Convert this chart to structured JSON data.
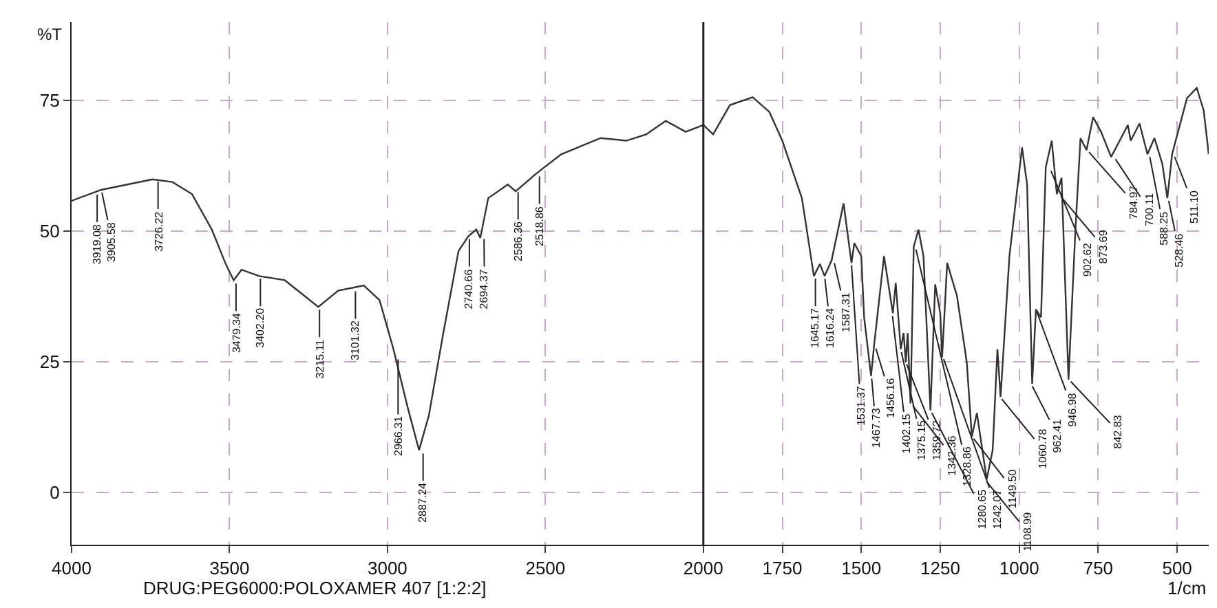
{
  "chart_data": {
    "type": "line",
    "xlabel": "1/cm",
    "ylabel": "%T",
    "grid": true,
    "marker": "none",
    "line_style": "solid",
    "xlim": [
      4000,
      400
    ],
    "xticks": [
      4000,
      3500,
      3000,
      2500,
      2000,
      1750,
      1500,
      1250,
      1000,
      750,
      500
    ],
    "ylim": [
      -10,
      90
    ],
    "yticks": [
      0,
      25,
      50,
      75
    ],
    "x": [
      4000,
      3906,
      3744,
      3681,
      3619,
      3556,
      3512,
      3487,
      3462,
      3406,
      3325,
      3219,
      3156,
      3075,
      3025,
      2981,
      2937,
      2900,
      2869,
      2825,
      2775,
      2744,
      2719,
      2706,
      2681,
      2619,
      2594,
      2531,
      2450,
      2325,
      2244,
      2181,
      2119,
      2056,
      2000,
      1969,
      1916,
      1844,
      1791,
      1750,
      1688,
      1650,
      1631,
      1616,
      1594,
      1556,
      1531,
      1522,
      1500,
      1491,
      1469,
      1459,
      1428,
      1400,
      1391,
      1375,
      1366,
      1359,
      1353,
      1344,
      1334,
      1319,
      1303,
      1281,
      1266,
      1250,
      1244,
      1228,
      1197,
      1166,
      1150,
      1134,
      1103,
      1084,
      1069,
      1059,
      1031,
      991,
      975,
      959,
      947,
      931,
      916,
      897,
      881,
      866,
      844,
      822,
      806,
      787,
      766,
      741,
      709,
      656,
      647,
      619,
      594,
      572,
      547,
      531,
      516,
      469,
      438,
      416,
      400
    ],
    "series": [
      {
        "color": "#333333",
        "values": [
          55.8,
          57.9,
          59.9,
          59.4,
          57.1,
          50.3,
          43.7,
          40.6,
          42.6,
          41.4,
          40.6,
          35.5,
          38.6,
          39.6,
          36.8,
          27.4,
          16.5,
          8.1,
          14.7,
          29.9,
          46.2,
          49.0,
          50.3,
          48.7,
          56.3,
          58.9,
          57.6,
          60.9,
          64.7,
          67.8,
          67.3,
          68.5,
          71.1,
          69.0,
          70.3,
          68.5,
          74.1,
          75.6,
          72.8,
          67.3,
          56.3,
          41.4,
          43.7,
          41.4,
          44.4,
          55.3,
          43.9,
          47.7,
          45.2,
          33.5,
          22.3,
          28.4,
          45.2,
          34.3,
          40.1,
          27.4,
          30.5,
          24.9,
          30.5,
          17.0,
          47.0,
          50.3,
          45.2,
          15.7,
          39.8,
          34.3,
          25.9,
          43.9,
          37.6,
          24.9,
          10.7,
          15.2,
          2.5,
          8.1,
          27.4,
          18.3,
          45.2,
          66.0,
          58.9,
          20.8,
          35.0,
          33.5,
          62.2,
          67.3,
          57.1,
          60.2,
          21.6,
          50.3,
          67.8,
          65.5,
          71.8,
          69.0,
          64.2,
          70.3,
          67.3,
          70.6,
          64.7,
          67.8,
          62.9,
          56.3,
          64.7,
          75.4,
          77.4,
          73.1,
          64.7
        ]
      }
    ],
    "ref_lines": [
      {
        "axis": "x",
        "value": 2000,
        "color": "#222222",
        "line_style": "solid"
      }
    ],
    "annotations": [
      {
        "text": "3919.08",
        "x": 3919.08,
        "y": 57.5
      },
      {
        "text": "3905.58",
        "x": 3905.58,
        "y": 57.9
      },
      {
        "text": "3726.22",
        "x": 3726.22,
        "y": 60
      },
      {
        "text": "3479.34",
        "x": 3479.34,
        "y": 40.5
      },
      {
        "text": "3402.20",
        "x": 3402.2,
        "y": 41.4
      },
      {
        "text": "3215.11",
        "x": 3215.11,
        "y": 35.5
      },
      {
        "text": "3101.32",
        "x": 3101.32,
        "y": 39
      },
      {
        "text": "2966.31",
        "x": 2966.31,
        "y": 26
      },
      {
        "text": "2887.24",
        "x": 2887.24,
        "y": 8
      },
      {
        "text": "2740.66",
        "x": 2740.66,
        "y": 49
      },
      {
        "text": "2694.37",
        "x": 2694.37,
        "y": 49
      },
      {
        "text": "2586.36",
        "x": 2586.36,
        "y": 58
      },
      {
        "text": "2518.86",
        "x": 2518.86,
        "y": 61
      },
      {
        "text": "1645.17",
        "x": 1645.17,
        "y": 41.4
      },
      {
        "text": "1616.24",
        "x": 1616.24,
        "y": 41.4
      },
      {
        "text": "1587.31",
        "x": 1587.31,
        "y": 44.4
      },
      {
        "text": "1531.37",
        "x": 1531.37,
        "y": 44
      },
      {
        "text": "1467.73",
        "x": 1467.73,
        "y": 22.3
      },
      {
        "text": "1456.16",
        "x": 1456.16,
        "y": 28
      },
      {
        "text": "1402.15",
        "x": 1402.15,
        "y": 34.3
      },
      {
        "text": "1375.15",
        "x": 1375.15,
        "y": 27.4
      },
      {
        "text": "1359.72",
        "x": 1359.72,
        "y": 25
      },
      {
        "text": "1342.36",
        "x": 1342.36,
        "y": 17
      },
      {
        "text": "1328.86",
        "x": 1328.86,
        "y": 47
      },
      {
        "text": "1280.65",
        "x": 1280.65,
        "y": 15.7
      },
      {
        "text": "1242.07",
        "x": 1242.07,
        "y": 26
      },
      {
        "text": "1149.50",
        "x": 1149.5,
        "y": 10.7
      },
      {
        "text": "1108.99",
        "x": 1108.99,
        "y": 2.5
      },
      {
        "text": "1060.78",
        "x": 1060.78,
        "y": 18.3
      },
      {
        "text": "962.41",
        "x": 962.41,
        "y": 20.8
      },
      {
        "text": "946.98",
        "x": 946.98,
        "y": 35
      },
      {
        "text": "902.62",
        "x": 902.62,
        "y": 62
      },
      {
        "text": "873.69",
        "x": 873.69,
        "y": 57
      },
      {
        "text": "842.83",
        "x": 842.83,
        "y": 21.6
      },
      {
        "text": "784.97",
        "x": 784.97,
        "y": 65.5
      },
      {
        "text": "700.11",
        "x": 700.11,
        "y": 64.2
      },
      {
        "text": "588.25",
        "x": 588.25,
        "y": 64.7
      },
      {
        "text": "528.46",
        "x": 528.46,
        "y": 56.3
      },
      {
        "text": "511.10",
        "x": 511.1,
        "y": 64.7
      },
      "DRUG:PEG6000:POLOXAMER 407 [1:2:2]"
    ]
  }
}
